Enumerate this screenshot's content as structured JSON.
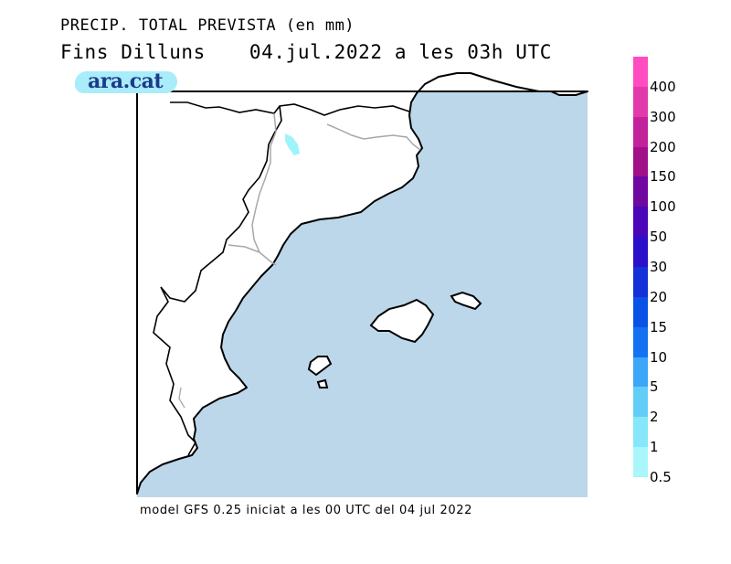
{
  "header": {
    "title": "PRECIP. TOTAL PREVISTA (en mm)",
    "period_label": "Fins Dilluns",
    "valid_time": "04.jul.2022 a les 03h UTC"
  },
  "logo": {
    "text": "ara.cat"
  },
  "footer": {
    "text": "model GFS 0.25 iniciat a les 00 UTC del 04 jul 2022"
  },
  "colors": {
    "sea": "#bdd7ea",
    "land": "#ffffff",
    "coastline": "#000000",
    "borders": "#a8a8a8",
    "precip_patch": "#9ff3fa"
  },
  "legend": {
    "unit": "mm",
    "levels": [
      {
        "label": "400",
        "color": "#ff4cc0"
      },
      {
        "label": "300",
        "color": "#e23aad"
      },
      {
        "label": "200",
        "color": "#c2239a"
      },
      {
        "label": "150",
        "color": "#a01088"
      },
      {
        "label": "100",
        "color": "#6e08a0"
      },
      {
        "label": "50",
        "color": "#4a06b8"
      },
      {
        "label": "30",
        "color": "#2a10c8"
      },
      {
        "label": "20",
        "color": "#1430d8"
      },
      {
        "label": "15",
        "color": "#0a52e6"
      },
      {
        "label": "10",
        "color": "#1472f2"
      },
      {
        "label": "5",
        "color": "#3ca6f8"
      },
      {
        "label": "2",
        "color": "#62cef8"
      },
      {
        "label": "1",
        "color": "#86e6fa"
      },
      {
        "label": "0.5",
        "color": "#a9f6fb"
      }
    ]
  }
}
